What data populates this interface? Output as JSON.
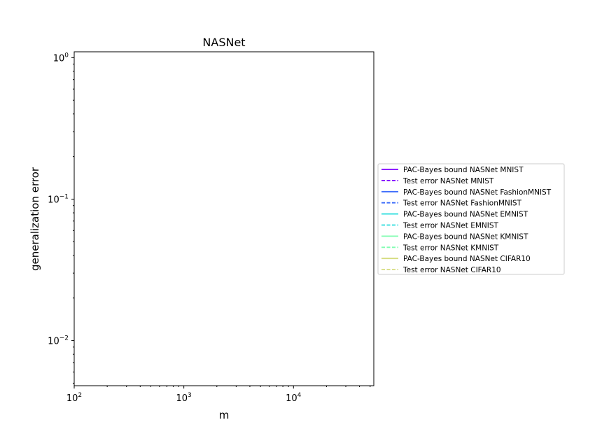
{
  "chart_data": {
    "type": "line",
    "title": "NASNet",
    "xlabel": "m",
    "ylabel": "generalization error",
    "x_scale": "log",
    "y_scale": "log",
    "xlim": [
      100,
      54000
    ],
    "ylim": [
      0.0048,
      1.1
    ],
    "x_ticks": [
      {
        "base": "10",
        "exp": "2",
        "value": 100
      },
      {
        "base": "10",
        "exp": "3",
        "value": 1000
      },
      {
        "base": "10",
        "exp": "4",
        "value": 10000
      }
    ],
    "y_ticks": [
      {
        "base": "10",
        "exp": "0",
        "value": 1
      },
      {
        "base": "10",
        "exp": "−1",
        "value": 0.1
      },
      {
        "base": "10",
        "exp": "−2",
        "value": 0.01
      }
    ],
    "grid": false,
    "legend_position": "outside-right",
    "series": [
      {
        "name": "PAC-Bayes bound NASNet MNIST",
        "color": "#7f00ff",
        "dash": "solid",
        "x": [],
        "y": []
      },
      {
        "name": "Test error NASNet MNIST",
        "color": "#7f00ff",
        "dash": "dashed",
        "x": [],
        "y": []
      },
      {
        "name": "PAC-Bayes bound NASNet FashionMNIST",
        "color": "#3d6dfb",
        "dash": "solid",
        "x": [],
        "y": []
      },
      {
        "name": "Test error NASNet FashionMNIST",
        "color": "#3d6dfb",
        "dash": "dashed",
        "x": [],
        "y": []
      },
      {
        "name": "PAC-Bayes bound NASNet EMNIST",
        "color": "#2adddd",
        "dash": "solid",
        "x": [],
        "y": []
      },
      {
        "name": "Test error NASNet EMNIST",
        "color": "#2adddd",
        "dash": "dashed",
        "x": [],
        "y": []
      },
      {
        "name": "PAC-Bayes bound NASNet KMNIST",
        "color": "#80fdb1",
        "dash": "solid",
        "x": [],
        "y": []
      },
      {
        "name": "Test error NASNet KMNIST",
        "color": "#80fdb1",
        "dash": "dashed",
        "x": [],
        "y": []
      },
      {
        "name": "PAC-Bayes bound NASNet CIFAR10",
        "color": "#d5dc7f",
        "dash": "solid",
        "x": [],
        "y": []
      },
      {
        "name": "Test error NASNet CIFAR10",
        "color": "#d5dc7f",
        "dash": "dashed",
        "x": [],
        "y": []
      }
    ]
  }
}
